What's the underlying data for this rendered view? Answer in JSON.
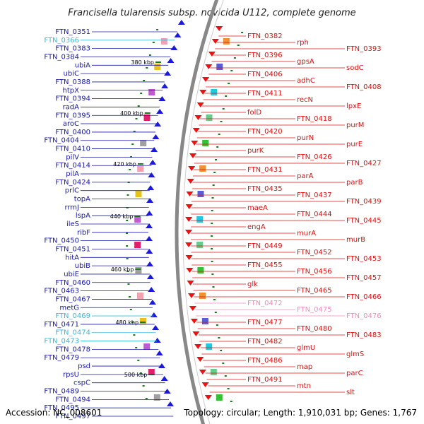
{
  "title": "Francisella tularensis subsp. novicida U112, complete genome",
  "footer": {
    "accession": "Accession: NC_008601",
    "topology": "Topology: circular; Length: 1,910,031 bp; Genes: 1,767"
  },
  "colors": {
    "plus_strand_label": "#1a1aa8",
    "minus_strand_label": "#dd1111",
    "rna_plus_label": "#33bbdd",
    "rna_minus_label": "#f08cbc",
    "backbone": "#888888",
    "tick": "#1c7a1c"
  },
  "kbp_marks": [
    "380 kbp",
    "400 kbp",
    "420 kbp",
    "440 kbp",
    "460 kbp",
    "480 kbp",
    "500 kbp"
  ],
  "left_labels": [
    {
      "text": "FTN_0351",
      "kind": "blue"
    },
    {
      "text": "FTN_0366",
      "kind": "cyan"
    },
    {
      "text": "FTN_0383",
      "kind": "blue"
    },
    {
      "text": "FTN_0384",
      "kind": "blue"
    },
    {
      "text": "ubiA",
      "kind": "blue"
    },
    {
      "text": "ubiC",
      "kind": "blue"
    },
    {
      "text": "FTN_0388",
      "kind": "blue"
    },
    {
      "text": "htpX",
      "kind": "blue"
    },
    {
      "text": "FTN_0394",
      "kind": "blue"
    },
    {
      "text": "radA",
      "kind": "blue"
    },
    {
      "text": "FTN_0395",
      "kind": "blue"
    },
    {
      "text": "aroC",
      "kind": "blue"
    },
    {
      "text": "FTN_0400",
      "kind": "blue"
    },
    {
      "text": "FTN_0404",
      "kind": "blue"
    },
    {
      "text": "FTN_0410",
      "kind": "blue"
    },
    {
      "text": "pilV",
      "kind": "blue"
    },
    {
      "text": "FTN_0414",
      "kind": "blue"
    },
    {
      "text": "pilA",
      "kind": "blue"
    },
    {
      "text": "FTN_0424",
      "kind": "blue"
    },
    {
      "text": "prlC",
      "kind": "blue"
    },
    {
      "text": "topA",
      "kind": "blue"
    },
    {
      "text": "rrmJ",
      "kind": "blue"
    },
    {
      "text": "lspA",
      "kind": "blue"
    },
    {
      "text": "ileS",
      "kind": "blue"
    },
    {
      "text": "ribF",
      "kind": "blue"
    },
    {
      "text": "FTN_0450",
      "kind": "blue"
    },
    {
      "text": "FTN_0451",
      "kind": "blue"
    },
    {
      "text": "hitA",
      "kind": "blue"
    },
    {
      "text": "ubiB",
      "kind": "blue"
    },
    {
      "text": "ubiE",
      "kind": "blue"
    },
    {
      "text": "FTN_0460",
      "kind": "blue"
    },
    {
      "text": "FTN_0463",
      "kind": "blue"
    },
    {
      "text": "FTN_0467",
      "kind": "blue"
    },
    {
      "text": "metG",
      "kind": "blue"
    },
    {
      "text": "FTN_0469",
      "kind": "cyan"
    },
    {
      "text": "FTN_0471",
      "kind": "blue"
    },
    {
      "text": "FTN_0474",
      "kind": "cyan"
    },
    {
      "text": "FTN_0473",
      "kind": "cyan"
    },
    {
      "text": "FTN_0478",
      "kind": "blue"
    },
    {
      "text": "FTN_0479",
      "kind": "blue"
    },
    {
      "text": "psd",
      "kind": "blue"
    },
    {
      "text": "rpsU",
      "kind": "blue"
    },
    {
      "text": "cspC",
      "kind": "blue"
    },
    {
      "text": "FTN_0489",
      "kind": "blue"
    },
    {
      "text": "FTN_0494",
      "kind": "blue"
    },
    {
      "text": "FTN_0495",
      "kind": "blue"
    },
    {
      "text": "FTN_0497",
      "kind": "blue"
    }
  ],
  "right_labels": [
    {
      "text": "FTN_0382",
      "kind": "red"
    },
    {
      "text": "rph",
      "kind": "red"
    },
    {
      "text": "FTN_0393",
      "kind": "red"
    },
    {
      "text": "FTN_0396",
      "kind": "red"
    },
    {
      "text": "gpsA",
      "kind": "red"
    },
    {
      "text": "sodC",
      "kind": "red"
    },
    {
      "text": "FTN_0406",
      "kind": "red"
    },
    {
      "text": "adhC",
      "kind": "red"
    },
    {
      "text": "FTN_0408",
      "kind": "red"
    },
    {
      "text": "FTN_0411",
      "kind": "red"
    },
    {
      "text": "recN",
      "kind": "red"
    },
    {
      "text": "lpxE",
      "kind": "red"
    },
    {
      "text": "folD",
      "kind": "red"
    },
    {
      "text": "FTN_0418",
      "kind": "red"
    },
    {
      "text": "purM",
      "kind": "red"
    },
    {
      "text": "FTN_0420",
      "kind": "red"
    },
    {
      "text": "purN",
      "kind": "red"
    },
    {
      "text": "purE",
      "kind": "red"
    },
    {
      "text": "purK",
      "kind": "red"
    },
    {
      "text": "FTN_0426",
      "kind": "red"
    },
    {
      "text": "FTN_0427",
      "kind": "red"
    },
    {
      "text": "FTN_0431",
      "kind": "red"
    },
    {
      "text": "parA",
      "kind": "red"
    },
    {
      "text": "parB",
      "kind": "red"
    },
    {
      "text": "FTN_0435",
      "kind": "red"
    },
    {
      "text": "FTN_0437",
      "kind": "red"
    },
    {
      "text": "FTN_0439",
      "kind": "red"
    },
    {
      "text": "maeA",
      "kind": "red"
    },
    {
      "text": "FTN_0444",
      "kind": "red"
    },
    {
      "text": "FTN_0445",
      "kind": "red"
    },
    {
      "text": "engA",
      "kind": "red"
    },
    {
      "text": "murA",
      "kind": "red"
    },
    {
      "text": "murB",
      "kind": "red"
    },
    {
      "text": "FTN_0449",
      "kind": "red"
    },
    {
      "text": "FTN_0452",
      "kind": "red"
    },
    {
      "text": "FTN_0453",
      "kind": "red"
    },
    {
      "text": "FTN_0455",
      "kind": "red"
    },
    {
      "text": "FTN_0456",
      "kind": "red"
    },
    {
      "text": "FTN_0457",
      "kind": "red"
    },
    {
      "text": "glk",
      "kind": "red"
    },
    {
      "text": "FTN_0465",
      "kind": "red"
    },
    {
      "text": "FTN_0466",
      "kind": "red"
    },
    {
      "text": "FTN_0472",
      "kind": "pink"
    },
    {
      "text": "FTN_0475",
      "kind": "pink"
    },
    {
      "text": "FTN_0476",
      "kind": "pink"
    },
    {
      "text": "FTN_0477",
      "kind": "red"
    },
    {
      "text": "FTN_0480",
      "kind": "red"
    },
    {
      "text": "FTN_0483",
      "kind": "red"
    },
    {
      "text": "FTN_0482",
      "kind": "red"
    },
    {
      "text": "glmU",
      "kind": "red"
    },
    {
      "text": "glmS",
      "kind": "red"
    },
    {
      "text": "FTN_0486",
      "kind": "red"
    },
    {
      "text": "map",
      "kind": "red"
    },
    {
      "text": "parC",
      "kind": "red"
    },
    {
      "text": "FTN_0491",
      "kind": "red"
    },
    {
      "text": "mtn",
      "kind": "red"
    },
    {
      "text": "slt",
      "kind": "red"
    }
  ]
}
